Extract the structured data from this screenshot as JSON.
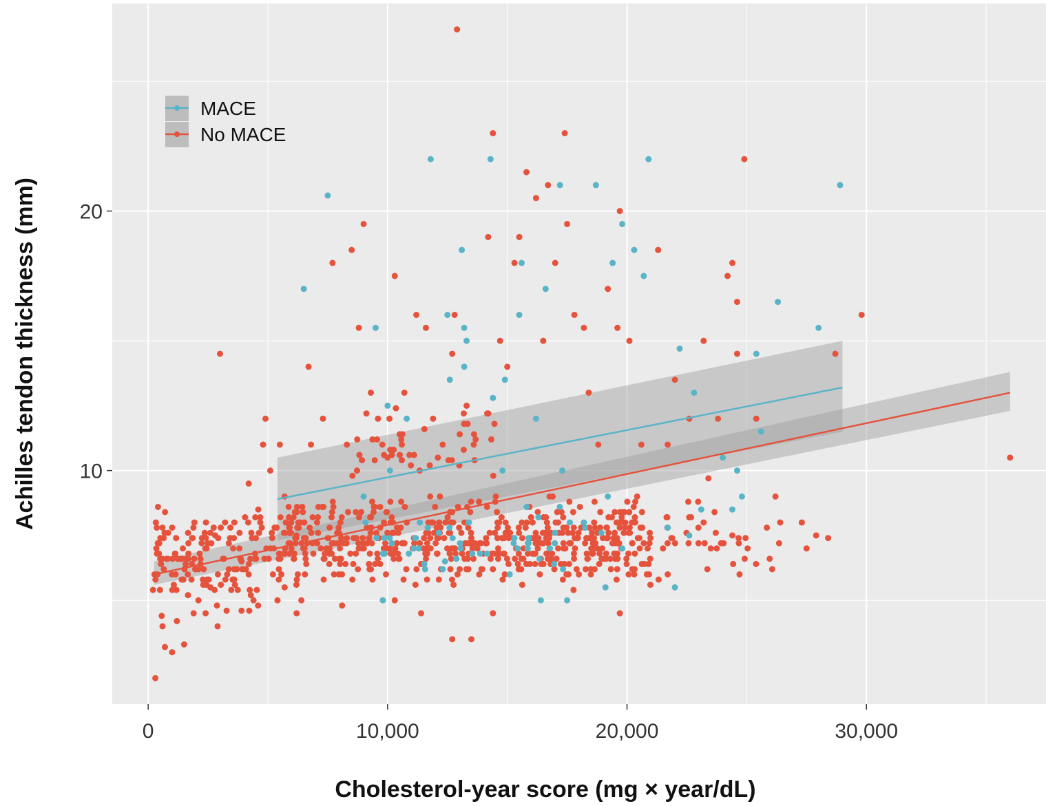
{
  "chart_data": {
    "type": "scatter",
    "title": "",
    "xlabel": "Cholesterol-year score (mg × year/dL)",
    "ylabel": "Achilles tendon thickness (mm)",
    "xlim": [
      -1500,
      37500
    ],
    "ylim": [
      1,
      28
    ],
    "x_ticks": [
      0,
      10000,
      20000,
      30000
    ],
    "x_tick_labels": [
      "0",
      "10,000",
      "20,000",
      "30,000"
    ],
    "y_ticks": [
      10,
      20
    ],
    "y_tick_labels": [
      "10",
      "20"
    ],
    "grid": true,
    "legend_position": "top-left",
    "colors": {
      "panel": "#EBEBEB",
      "grid": "#FFFFFF",
      "ribbon": "#9E9E9E"
    },
    "series": [
      {
        "name": "MACE",
        "color": "#5AB4C8",
        "trend": {
          "x_start": 5400,
          "x_end": 29000,
          "y_start": 8.9,
          "y_end": 13.2,
          "ci_start": [
            7.3,
            10.5
          ],
          "ci_end": [
            11.5,
            15.0
          ]
        },
        "points": [
          [
            7500,
            20.6
          ],
          [
            6500,
            17.0
          ],
          [
            9500,
            15.5
          ],
          [
            11800,
            22.0
          ],
          [
            14300,
            22.0
          ],
          [
            13100,
            18.5
          ],
          [
            12500,
            16.0
          ],
          [
            13200,
            15.5
          ],
          [
            13300,
            15.0
          ],
          [
            13200,
            14.0
          ],
          [
            12600,
            13.5
          ],
          [
            14400,
            12.8
          ],
          [
            10000,
            12.5
          ],
          [
            15600,
            18.0
          ],
          [
            15500,
            16.0
          ],
          [
            16600,
            17.0
          ],
          [
            17200,
            21.0
          ],
          [
            18700,
            21.0
          ],
          [
            19800,
            19.5
          ],
          [
            20300,
            18.5
          ],
          [
            19400,
            18.0
          ],
          [
            20700,
            17.5
          ],
          [
            20900,
            22.0
          ],
          [
            28900,
            21.0
          ],
          [
            26300,
            16.5
          ],
          [
            28000,
            15.5
          ],
          [
            25400,
            14.5
          ],
          [
            25600,
            11.5
          ],
          [
            22200,
            14.7
          ],
          [
            22800,
            13.0
          ],
          [
            24000,
            10.5
          ],
          [
            24600,
            10.0
          ],
          [
            24800,
            9.0
          ],
          [
            24400,
            8.5
          ],
          [
            23100,
            8.5
          ],
          [
            22600,
            7.5
          ],
          [
            21700,
            7.8
          ],
          [
            22000,
            5.5
          ],
          [
            19800,
            7.0
          ],
          [
            19100,
            5.5
          ],
          [
            17500,
            5.0
          ],
          [
            16400,
            5.0
          ],
          [
            15100,
            6.0
          ],
          [
            12400,
            6.5
          ],
          [
            13400,
            8.0
          ],
          [
            14900,
            13.5
          ],
          [
            16200,
            12.0
          ],
          [
            17300,
            10.0
          ],
          [
            14800,
            10.0
          ],
          [
            10100,
            10.0
          ],
          [
            9000,
            9.0
          ],
          [
            11300,
            7.0
          ],
          [
            9800,
            5.0
          ],
          [
            19200,
            9.0
          ],
          [
            18200,
            8.0
          ],
          [
            10800,
            12.0
          ]
        ]
      },
      {
        "name": "No MACE",
        "color": "#E5533D",
        "trend": {
          "x_start": 250,
          "x_end": 36000,
          "y_start": 6.0,
          "y_end": 13.0,
          "ci_start": [
            5.6,
            6.5
          ],
          "ci_end": [
            12.3,
            13.8
          ]
        },
        "points": [
          [
            300,
            2.0
          ],
          [
            600,
            4.0
          ],
          [
            700,
            3.2
          ],
          [
            1000,
            3.0
          ],
          [
            1200,
            4.2
          ],
          [
            1500,
            3.3
          ],
          [
            1900,
            4.5
          ],
          [
            2100,
            5.0
          ],
          [
            2400,
            4.5
          ],
          [
            2600,
            5.5
          ],
          [
            2900,
            4.0
          ],
          [
            3000,
            14.5
          ],
          [
            2800,
            7.5
          ],
          [
            3300,
            6.0
          ],
          [
            3600,
            8.0
          ],
          [
            3900,
            6.5
          ],
          [
            4200,
            9.5
          ],
          [
            4400,
            5.0
          ],
          [
            4600,
            8.5
          ],
          [
            4800,
            11.0
          ],
          [
            4900,
            12.0
          ],
          [
            5100,
            10.0
          ],
          [
            5500,
            11.0
          ],
          [
            5700,
            9.0
          ],
          [
            6200,
            7.5
          ],
          [
            6400,
            5.0
          ],
          [
            6700,
            14.0
          ],
          [
            6800,
            11.0
          ],
          [
            7300,
            12.0
          ],
          [
            7700,
            18.0
          ],
          [
            8300,
            11.0
          ],
          [
            8500,
            18.5
          ],
          [
            8800,
            15.5
          ],
          [
            9000,
            19.5
          ],
          [
            9300,
            13.0
          ],
          [
            9600,
            12.0
          ],
          [
            10000,
            10.5
          ],
          [
            10300,
            17.5
          ],
          [
            10700,
            13.0
          ],
          [
            11200,
            16.0
          ],
          [
            11600,
            15.5
          ],
          [
            11900,
            12.0
          ],
          [
            12100,
            10.5
          ],
          [
            12300,
            11.0
          ],
          [
            12700,
            14.5
          ],
          [
            12800,
            16.0
          ],
          [
            12900,
            27.0
          ],
          [
            13300,
            12.5
          ],
          [
            13600,
            11.0
          ],
          [
            14200,
            19.0
          ],
          [
            14400,
            23.0
          ],
          [
            14700,
            15.0
          ],
          [
            15000,
            14.0
          ],
          [
            15300,
            18.0
          ],
          [
            15500,
            19.0
          ],
          [
            15800,
            21.5
          ],
          [
            16200,
            20.5
          ],
          [
            16500,
            15.0
          ],
          [
            16700,
            21.0
          ],
          [
            17000,
            18.0
          ],
          [
            17400,
            23.0
          ],
          [
            17500,
            19.5
          ],
          [
            17800,
            16.0
          ],
          [
            18200,
            15.5
          ],
          [
            18400,
            13.0
          ],
          [
            18800,
            11.0
          ],
          [
            19200,
            17.0
          ],
          [
            19600,
            15.5
          ],
          [
            19700,
            20.0
          ],
          [
            20100,
            15.0
          ],
          [
            20600,
            11.0
          ],
          [
            21300,
            18.5
          ],
          [
            21700,
            11.0
          ],
          [
            22000,
            13.5
          ],
          [
            22600,
            12.0
          ],
          [
            23200,
            15.0
          ],
          [
            23800,
            12.0
          ],
          [
            24200,
            17.5
          ],
          [
            24400,
            18.0
          ],
          [
            24600,
            16.5
          ],
          [
            24600,
            14.5
          ],
          [
            24900,
            22.0
          ],
          [
            25400,
            12.0
          ],
          [
            26200,
            9.0
          ],
          [
            26400,
            8.0
          ],
          [
            27300,
            8.0
          ],
          [
            27500,
            7.0
          ],
          [
            27900,
            7.5
          ],
          [
            28400,
            7.4
          ],
          [
            28700,
            14.5
          ],
          [
            29800,
            16.0
          ],
          [
            36000,
            10.5
          ],
          [
            23400,
            9.7
          ],
          [
            23200,
            8.0
          ],
          [
            24700,
            6.0
          ],
          [
            23500,
            7.0
          ],
          [
            24400,
            7.5
          ],
          [
            21700,
            6.0
          ],
          [
            20300,
            6.0
          ],
          [
            19700,
            4.5
          ],
          [
            13500,
            3.5
          ],
          [
            12700,
            3.5
          ],
          [
            14400,
            4.5
          ],
          [
            11400,
            4.5
          ],
          [
            10300,
            5.0
          ],
          [
            8100,
            4.8
          ],
          [
            6200,
            4.5
          ],
          [
            5700,
            5.5
          ]
        ]
      }
    ],
    "clusters": [
      {
        "series": "No MACE",
        "count": 150,
        "x_range": [
          200,
          5500
        ],
        "y_range": [
          4.3,
          8.8
        ],
        "seed": 11
      },
      {
        "series": "No MACE",
        "count": 520,
        "x_range": [
          5300,
          21000
        ],
        "y_range": [
          5.4,
          9.2
        ],
        "seed": 23
      },
      {
        "series": "No MACE",
        "count": 45,
        "x_range": [
          8300,
          14500
        ],
        "y_range": [
          9.2,
          12.8
        ],
        "seed": 37
      },
      {
        "series": "No MACE",
        "count": 60,
        "x_range": [
          16000,
          26500
        ],
        "y_range": [
          5.8,
          9.0
        ],
        "seed": 41
      },
      {
        "series": "MACE",
        "count": 45,
        "x_range": [
          9000,
          19000
        ],
        "y_range": [
          5.8,
          9.0
        ],
        "seed": 53
      }
    ]
  }
}
